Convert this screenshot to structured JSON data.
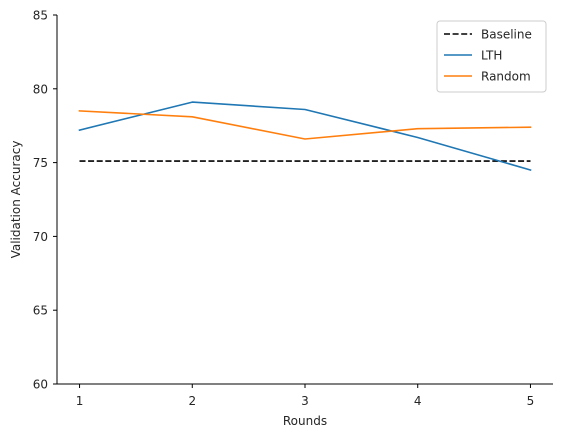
{
  "chart_data": {
    "type": "line",
    "title": "",
    "xlabel": "Rounds",
    "ylabel": "Validation Accuracy",
    "x": [
      1,
      2,
      3,
      4,
      5
    ],
    "xlim": [
      0.8,
      5.2
    ],
    "ylim": [
      60,
      85
    ],
    "xticks": [
      1,
      2,
      3,
      4,
      5
    ],
    "yticks": [
      60,
      65,
      70,
      75,
      80,
      85
    ],
    "grid": false,
    "legend_position": "top-right",
    "series": [
      {
        "name": "Baseline",
        "values": [
          75.1,
          75.1,
          75.1,
          75.1,
          75.1
        ],
        "color": "#000000",
        "style": "dashed"
      },
      {
        "name": "LTH",
        "values": [
          77.2,
          79.1,
          78.6,
          76.7,
          74.5
        ],
        "color": "#1f77b4",
        "style": "solid"
      },
      {
        "name": "Random",
        "values": [
          78.5,
          78.1,
          76.6,
          77.3,
          77.4
        ],
        "color": "#ff7f0e",
        "style": "solid"
      }
    ]
  }
}
